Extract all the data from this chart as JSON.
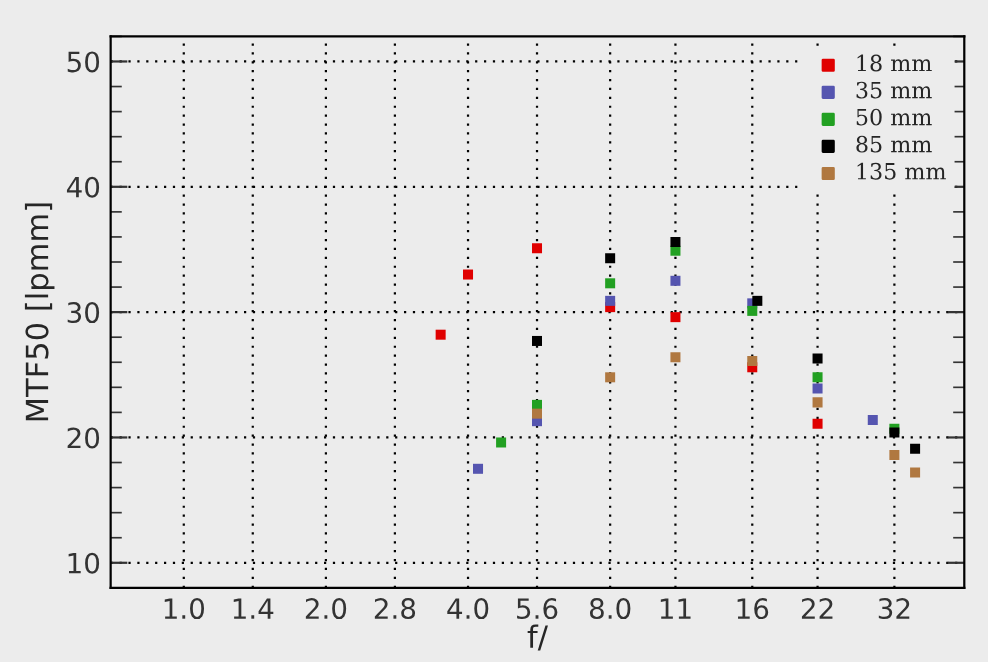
{
  "chart_data": {
    "type": "scatter",
    "xlabel": "f/",
    "ylabel": "MTF50 [lpmm]",
    "log": "x",
    "xlim": [
      0.7,
      45
    ],
    "ylim": [
      8,
      52
    ],
    "xticks": [
      {
        "value": 1.0,
        "label": "1.0"
      },
      1.4,
      {
        "value": 2.0,
        "label": "2.0"
      },
      2.8,
      {
        "value": 4.0,
        "label": "4.0"
      },
      5.6,
      {
        "value": 8.0,
        "label": "8.0"
      },
      11,
      16,
      22,
      32
    ],
    "yticks": [
      10,
      20,
      30,
      40,
      50
    ],
    "grid": true,
    "legend": "top right",
    "marker": "square",
    "series": [
      {
        "name": "18 mm",
        "color": "#e00000",
        "x": [
          3.5,
          4.0,
          5.6,
          8.0,
          11,
          16,
          22
        ],
        "values": [
          28.2,
          33.0,
          35.1,
          30.4,
          29.6,
          25.6,
          21.1
        ]
      },
      {
        "name": "35 mm",
        "color": "#5555b0",
        "x": [
          4.2,
          5.6,
          8.0,
          11,
          16,
          22,
          28.8
        ],
        "values": [
          17.5,
          21.3,
          30.9,
          32.5,
          30.7,
          23.9,
          21.4
        ]
      },
      {
        "name": "50 mm",
        "color": "#22a022",
        "x": [
          4.7,
          5.6,
          8.0,
          11,
          16,
          22,
          32
        ],
        "values": [
          19.6,
          22.6,
          32.3,
          34.9,
          30.1,
          24.8,
          20.7
        ]
      },
      {
        "name": "85 mm",
        "color": "#000000",
        "x": [
          5.6,
          8.0,
          11,
          16.4,
          22,
          32,
          35.4
        ],
        "values": [
          27.7,
          34.3,
          35.6,
          30.9,
          26.3,
          20.4,
          19.1
        ]
      },
      {
        "name": "135 mm",
        "color": "#b07840",
        "x": [
          5.6,
          8.0,
          11,
          16,
          22,
          32,
          35.4
        ],
        "values": [
          21.9,
          24.8,
          26.4,
          26.1,
          22.8,
          18.6,
          17.2
        ]
      }
    ]
  }
}
